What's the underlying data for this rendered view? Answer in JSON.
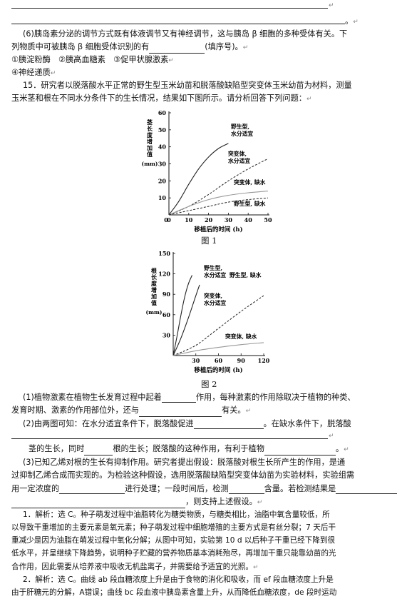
{
  "paragraphs": {
    "q6_line1": "(6)胰岛素分泌的调节方式既有体液调节又有神经调节，这与胰岛 β 细胞的多种受体有关。下",
    "q6_line2a": "列物质中可被胰岛 β 细胞受体识别的有",
    "q6_line2b": "(填序号)。",
    "q6_opts": "①胰淀粉酶　②胰高血糖素　③促甲状腺激素",
    "q6_opt4": "④神经递质",
    "q15_line1": "15．研究者以脱落酸水平正常的野生型玉米幼苗和脱落酸缺陷型突变体玉米幼苗为材料，测量",
    "q15_line2": "玉米茎和根在不同水分条件下的生长情况，结果如下图所示。请分析回答下列问题：",
    "q1_a": "(1)植物激素在植物生长发育过程中起着",
    "q1_b": "作用，每种激素的作用除取决于植物的种类、",
    "q1_c": "发育时期、激素的作用部位外，还与",
    "q1_d": "有关。",
    "q2_a": "(2)由两图可知：在水分适宜条件下，脱落酸促进",
    "q2_b": "。在缺水条件下，脱落酸",
    "q2_c": "茎的生长，同时",
    "q2_d": "根的生长；脱落酸的这种作用，有利于植物",
    "q2_e": "。",
    "q3_a": "(3)已知乙烯对根的生长有抑制作用。研究者提出假设：脱落酸对根生长所产生的作用，是通",
    "q3_b": "过抑制乙烯合成而实现的。为检验这种假设，选用脱落酸缺陷型突变体幼苗为实验材料，实验组需",
    "q3_c1": "用一定浓度的",
    "q3_c2": "进行处理；一段时间后，检测",
    "q3_c3": "含量。若检测结果是",
    "q3_d": "，则支持上述假设。",
    "ans1_a": "1．解析：选 C。种子萌发过程中油脂转化为糖类物质，与糖类相比，油脂中氧含量较低，所",
    "ans1_b": "以导致干重增加的主要元素是氧元素；种子萌发过程中细胞增殖的主要方式是有丝分裂；7 天后干",
    "ans1_c": "重减少是因为油脂在萌发过程中氧化分解；从图中可知，实验第 10 d 以后种子干重已经下降到很",
    "ans1_d": "低水平，并呈继续下降趋势，说明种子贮藏的营养物质基本消耗殆尽，再增加干重只能靠幼苗的光",
    "ans1_e": "合作用，因此需要从培养液中吸收无机盐离子，并需要给予适宜的光照。",
    "ans2_a": "2．解析：选 C。曲线 ab 段血糖浓度上升是由于食物的消化和吸收，而 ef 段血糖浓度上升是",
    "ans2_b": "由于肝糖元的分解，A错误；曲线 bc 段血液中胰岛素含量上升，从而降低血糖浓度，de 段时运动"
  },
  "figure1": {
    "caption": "图 1",
    "ylabel": "茎长度增加值(mm)",
    "xlabel": "移植后的时间 (h)",
    "labels": {
      "wild_water": [
        "野生型,",
        "水分适宜"
      ],
      "mut_water": [
        "突变体,",
        "水分适宜"
      ],
      "mut_dry": "突变体, 缺水",
      "wild_dry": "野生型, 缺水"
    }
  },
  "figure2": {
    "caption": "图 2",
    "ylabel": "根长度增加值(mm)",
    "xlabel": "移植后的时间 (h)",
    "labels": {
      "wild_dry": "野生型, 缺水",
      "wild_water": [
        "野生型,",
        "水分适宜"
      ],
      "mut_water": [
        "突变体,",
        "水分适宜"
      ],
      "mut_dry": "突变体, 缺水"
    }
  },
  "chart_data": [
    {
      "type": "line",
      "xlabel": "移植后的时间 (h)",
      "ylabel": "茎长度增加值(mm)",
      "xlim": [
        0,
        50
      ],
      "ylim": [
        0,
        60
      ],
      "xticks": [
        0,
        10,
        20,
        30,
        40,
        50
      ],
      "yticks": [
        10,
        20,
        30,
        40,
        50,
        60
      ],
      "series": [
        {
          "name": "野生型, 水分适宜",
          "style": "solid-dark",
          "x": [
            0,
            5,
            10,
            15,
            20,
            25,
            30
          ],
          "y": [
            0,
            8,
            18,
            27,
            34,
            39,
            42
          ]
        },
        {
          "name": "突变体, 水分适宜",
          "style": "dashed",
          "x": [
            0,
            10,
            20,
            30,
            40,
            50
          ],
          "y": [
            0,
            5,
            12,
            20,
            27,
            33
          ]
        },
        {
          "name": "突变体, 缺水",
          "style": "solid-gray",
          "x": [
            0,
            10,
            20,
            30,
            40,
            50
          ],
          "y": [
            0,
            5,
            9,
            11.5,
            13,
            14
          ]
        },
        {
          "name": "野生型, 缺水",
          "style": "dashed",
          "x": [
            0,
            10,
            20,
            30,
            40,
            50
          ],
          "y": [
            0,
            2.5,
            5,
            7.5,
            9,
            10
          ]
        }
      ]
    },
    {
      "type": "line",
      "xlabel": "移植后的时间 (h)",
      "ylabel": "根长度增加值(mm)",
      "xlim": [
        0,
        120
      ],
      "ylim": [
        0,
        150
      ],
      "xticks": [
        30,
        60,
        90,
        120
      ],
      "yticks": [
        30,
        60,
        90,
        120,
        150
      ],
      "series": [
        {
          "name": "野生型, 缺水",
          "style": "solid-dark",
          "x": [
            0,
            5,
            10,
            15,
            20,
            25
          ],
          "y": [
            0,
            28,
            58,
            85,
            105,
            118
          ]
        },
        {
          "name": "野生型, 水分适宜",
          "style": "solid-dark",
          "x": [
            0,
            10,
            20,
            30,
            35
          ],
          "y": [
            0,
            25,
            55,
            88,
            104
          ]
        },
        {
          "name": "突变体, 水分适宜",
          "style": "dashed",
          "x": [
            0,
            30,
            60,
            90,
            120
          ],
          "y": [
            0,
            15,
            40,
            65,
            88
          ]
        },
        {
          "name": "突变体, 缺水",
          "style": "solid-gray",
          "x": [
            0,
            30,
            60,
            90,
            120
          ],
          "y": [
            0,
            7,
            12,
            16,
            19
          ]
        }
      ]
    }
  ]
}
